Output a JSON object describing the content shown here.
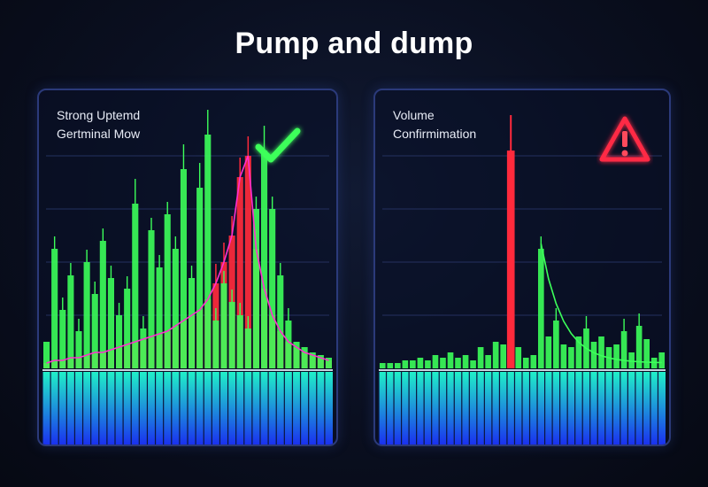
{
  "title": "Pump and dump",
  "colors": {
    "bull": "#3cff5a",
    "bear": "#ff2a3c",
    "trend_line": "#ff2fd0",
    "trend_line_right": "#3cff5a",
    "volume_top": "#20f0c8",
    "volume_bottom": "#1a2cf0",
    "check": "#3dff5a",
    "alert": "#ff2a44"
  },
  "panels": [
    {
      "label_lines": [
        "Strong Uptemd",
        "Gertminal Mow"
      ],
      "icon": "check-mark-icon"
    },
    {
      "label_lines": [
        "Volume",
        "Confirmimation"
      ],
      "icon": "warning-triangle-icon"
    }
  ],
  "chart_data": [
    {
      "type": "bar",
      "title": "Strong Uptemd Gertminal Mow",
      "ylim": [
        0,
        100
      ],
      "grid": true,
      "series": [
        {
          "values": [
            10,
            45,
            22,
            35,
            14,
            40,
            28,
            48,
            34,
            20,
            30,
            62,
            15,
            52,
            38,
            58,
            45,
            75,
            34,
            68,
            88,
            18,
            32,
            25,
            20,
            15,
            60,
            82,
            60,
            35,
            18,
            10,
            8,
            6,
            5,
            4
          ]
        },
        {
          "values": [
            2,
            3,
            3,
            4,
            4,
            5,
            6,
            6,
            7,
            8,
            9,
            10,
            11,
            12,
            13,
            14,
            16,
            18,
            20,
            22,
            26,
            32,
            40,
            50,
            72,
            80,
            45,
            30,
            20,
            14,
            10,
            8,
            6,
            5,
            4,
            3
          ]
        }
      ]
    },
    {
      "type": "bar",
      "title": "Volume Confirmimation",
      "ylim": [
        0,
        100
      ],
      "grid": true,
      "series": [
        {
          "values": [
            2,
            2,
            2,
            3,
            3,
            4,
            3,
            5,
            4,
            6,
            4,
            5,
            3,
            8,
            5,
            10,
            9,
            82,
            8,
            4,
            5,
            45,
            12,
            18,
            9,
            8,
            12,
            15,
            10,
            12,
            8,
            9,
            14,
            6,
            16,
            11,
            4,
            6
          ]
        },
        {
          "values": []
        }
      ]
    }
  ]
}
